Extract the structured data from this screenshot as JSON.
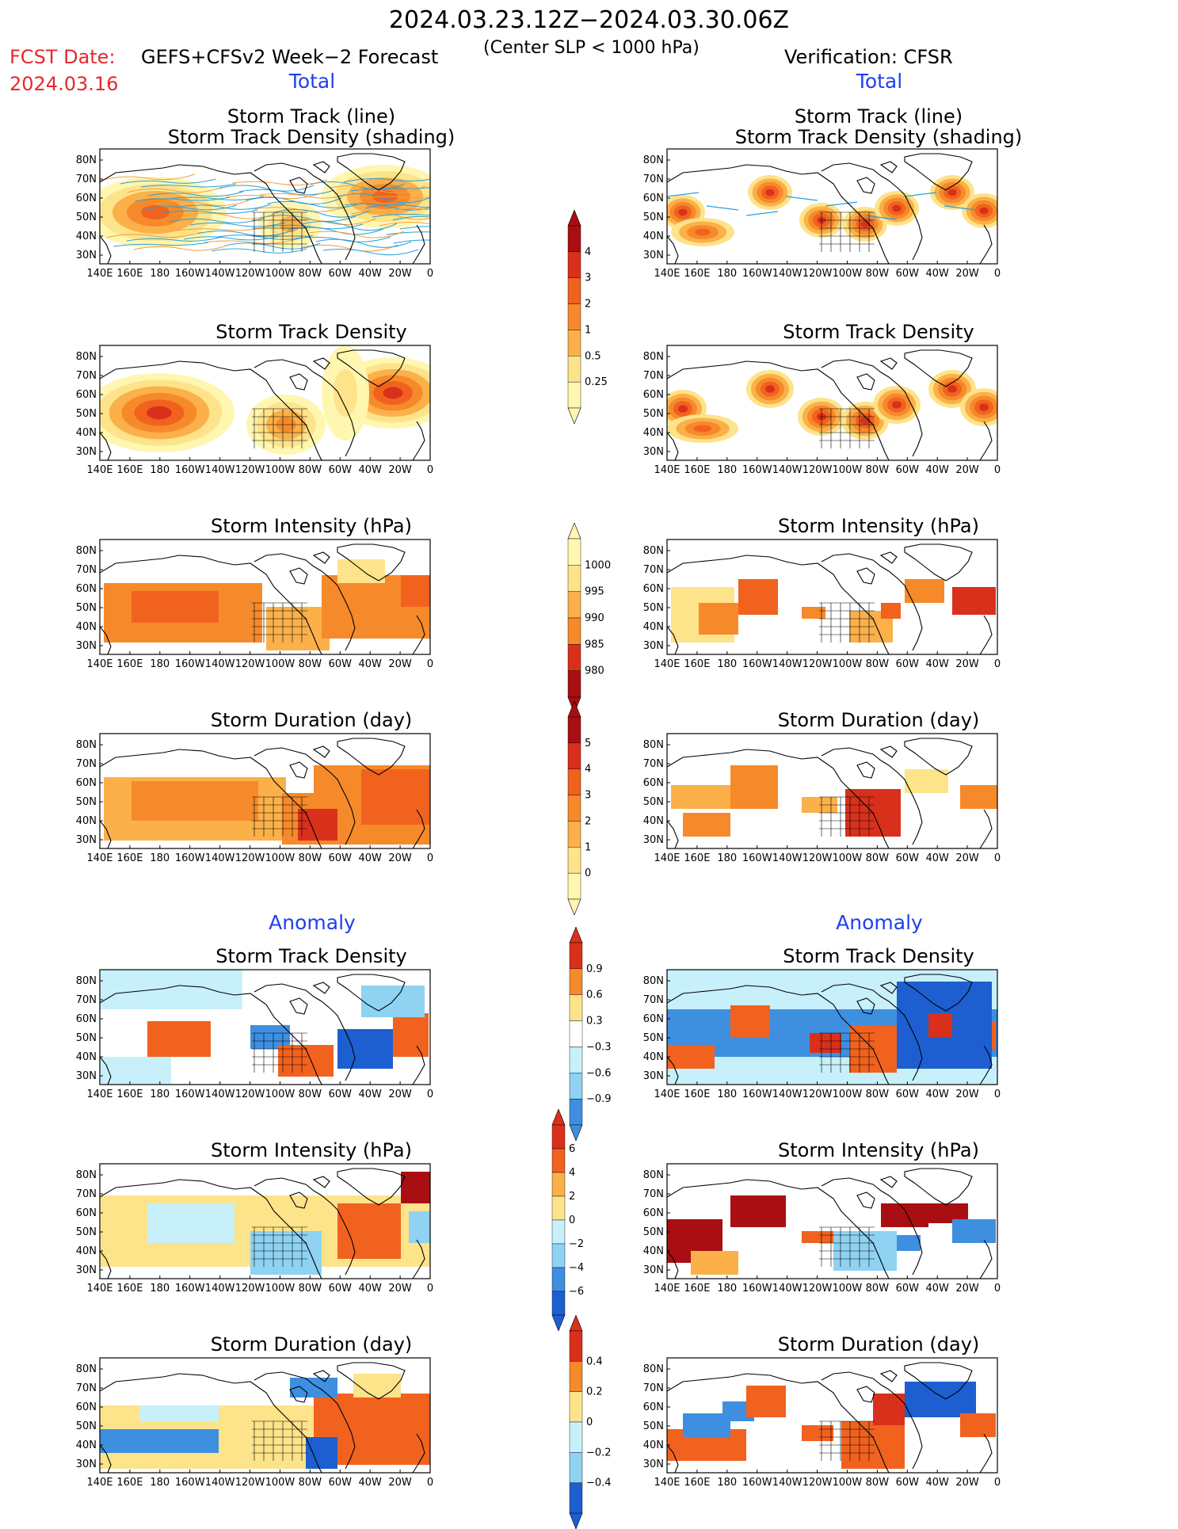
{
  "header": {
    "title": "2024.03.23.12Z−2024.03.30.06Z",
    "fcst_label": "FCST Date:",
    "fcst_date": "2024.03.16",
    "model": "GEFS+CFSv2 Week−2 Forecast",
    "threshold": "(Center SLP < 1000 hPa)",
    "verification": "Verification: CFSR"
  },
  "sections": {
    "total_left": "Total",
    "total_right": "Total",
    "anomaly_left": "Anomaly",
    "anomaly_right": "Anomaly"
  },
  "panel_titles": {
    "track_line": "Storm Track (line)",
    "track_density_shading": "Storm Track Density (shading)",
    "density": "Storm Track Density",
    "intensity": "Storm Intensity (hPa)",
    "duration": "Storm Duration (day)"
  },
  "axes": {
    "lat_ticks": [
      "80N",
      "70N",
      "60N",
      "50N",
      "40N",
      "30N"
    ],
    "lon_ticks": [
      "140E",
      "160E",
      "180",
      "160W",
      "140W",
      "120W",
      "100W",
      "80W",
      "60W",
      "40W",
      "20W",
      "0"
    ]
  },
  "colorbars": {
    "density_total": [
      "4",
      "3",
      "2",
      "1",
      "0.5",
      "0.25"
    ],
    "intensity_total": [
      "1000",
      "995",
      "990",
      "985",
      "980"
    ],
    "duration_total": [
      "5",
      "4",
      "3",
      "2",
      "1",
      "0"
    ],
    "density_anom": [
      "0.9",
      "0.6",
      "0.3",
      "−0.3",
      "−0.6",
      "−0.9"
    ],
    "intensity_anom": [
      "6",
      "4",
      "2",
      "0",
      "−2",
      "−4",
      "−6"
    ],
    "duration_anom": [
      "0.4",
      "0.2",
      "0",
      "−0.2",
      "−0.4"
    ]
  },
  "colors": {
    "red_text": "#e8282d",
    "blue_text": "#1f3ff0",
    "warm": [
      "#fff6b0",
      "#fde38a",
      "#fbb04a",
      "#f68a2a",
      "#f1621f",
      "#d9301c",
      "#a90f12"
    ],
    "cool": [
      "#c8f0fb",
      "#8fd2f2",
      "#3e8fe0",
      "#1d5fd0"
    ]
  }
}
